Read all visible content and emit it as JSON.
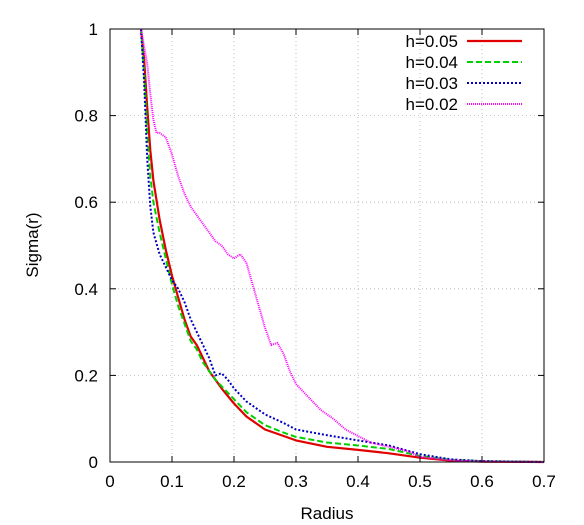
{
  "chart_data": {
    "type": "line",
    "title": "",
    "xlabel": "Radius",
    "ylabel": "Sigma(r)",
    "xlim": [
      0,
      0.7
    ],
    "ylim": [
      0,
      1
    ],
    "xticks": [
      "0",
      "0.1",
      "0.2",
      "0.3",
      "0.4",
      "0.5",
      "0.6",
      "0.7"
    ],
    "yticks": [
      "0",
      "0.2",
      "0.4",
      "0.6",
      "0.8",
      "1"
    ],
    "grid": true,
    "legend_position": "top-right",
    "series": [
      {
        "name": "h=0.05",
        "color": "#e00000",
        "dash": "solid",
        "x": [
          0.05,
          0.055,
          0.06,
          0.065,
          0.07,
          0.08,
          0.09,
          0.1,
          0.11,
          0.12,
          0.13,
          0.14,
          0.15,
          0.16,
          0.17,
          0.18,
          0.2,
          0.22,
          0.25,
          0.28,
          0.3,
          0.35,
          0.4,
          0.45,
          0.5,
          0.55,
          0.6,
          0.7
        ],
        "y": [
          1.0,
          0.93,
          0.82,
          0.72,
          0.65,
          0.56,
          0.49,
          0.43,
          0.38,
          0.33,
          0.29,
          0.27,
          0.24,
          0.21,
          0.19,
          0.17,
          0.135,
          0.105,
          0.075,
          0.06,
          0.05,
          0.035,
          0.028,
          0.02,
          0.01,
          0.003,
          0.001,
          0.0
        ]
      },
      {
        "name": "h=0.04",
        "color": "#00d000",
        "dash": "6,3",
        "x": [
          0.05,
          0.055,
          0.06,
          0.065,
          0.07,
          0.08,
          0.09,
          0.1,
          0.11,
          0.12,
          0.13,
          0.14,
          0.15,
          0.16,
          0.17,
          0.18,
          0.2,
          0.22,
          0.25,
          0.28,
          0.3,
          0.35,
          0.4,
          0.45,
          0.5,
          0.55,
          0.6,
          0.7
        ],
        "y": [
          1.0,
          0.9,
          0.76,
          0.66,
          0.6,
          0.53,
          0.47,
          0.41,
          0.36,
          0.32,
          0.28,
          0.26,
          0.23,
          0.21,
          0.19,
          0.175,
          0.145,
          0.115,
          0.085,
          0.068,
          0.058,
          0.045,
          0.038,
          0.03,
          0.014,
          0.005,
          0.002,
          0.0
        ]
      },
      {
        "name": "h=0.03",
        "color": "#0000c0",
        "dash": "2,2",
        "x": [
          0.05,
          0.055,
          0.06,
          0.065,
          0.07,
          0.08,
          0.09,
          0.1,
          0.11,
          0.12,
          0.13,
          0.14,
          0.15,
          0.16,
          0.17,
          0.18,
          0.19,
          0.2,
          0.22,
          0.25,
          0.28,
          0.3,
          0.35,
          0.4,
          0.45,
          0.5,
          0.55,
          0.6,
          0.7
        ],
        "y": [
          1.0,
          0.88,
          0.7,
          0.59,
          0.53,
          0.48,
          0.45,
          0.42,
          0.4,
          0.37,
          0.33,
          0.3,
          0.27,
          0.24,
          0.2,
          0.205,
          0.19,
          0.17,
          0.14,
          0.11,
          0.09,
          0.075,
          0.062,
          0.05,
          0.038,
          0.018,
          0.006,
          0.002,
          0.0
        ]
      },
      {
        "name": "h=0.02",
        "color": "#ff00ff",
        "dash": "1,1",
        "x": [
          0.05,
          0.055,
          0.06,
          0.065,
          0.07,
          0.075,
          0.08,
          0.09,
          0.1,
          0.11,
          0.12,
          0.13,
          0.14,
          0.15,
          0.16,
          0.17,
          0.18,
          0.19,
          0.2,
          0.21,
          0.22,
          0.23,
          0.24,
          0.25,
          0.26,
          0.27,
          0.28,
          0.29,
          0.3,
          0.32,
          0.34,
          0.36,
          0.38,
          0.4,
          0.42,
          0.45,
          0.48,
          0.5,
          0.55,
          0.6,
          0.7
        ],
        "y": [
          1.0,
          0.96,
          0.92,
          0.85,
          0.79,
          0.76,
          0.76,
          0.75,
          0.71,
          0.66,
          0.62,
          0.59,
          0.57,
          0.55,
          0.53,
          0.51,
          0.5,
          0.48,
          0.47,
          0.48,
          0.46,
          0.41,
          0.36,
          0.31,
          0.27,
          0.275,
          0.25,
          0.21,
          0.18,
          0.15,
          0.12,
          0.1,
          0.075,
          0.06,
          0.045,
          0.035,
          0.025,
          0.012,
          0.004,
          0.001,
          0.0
        ]
      }
    ]
  }
}
